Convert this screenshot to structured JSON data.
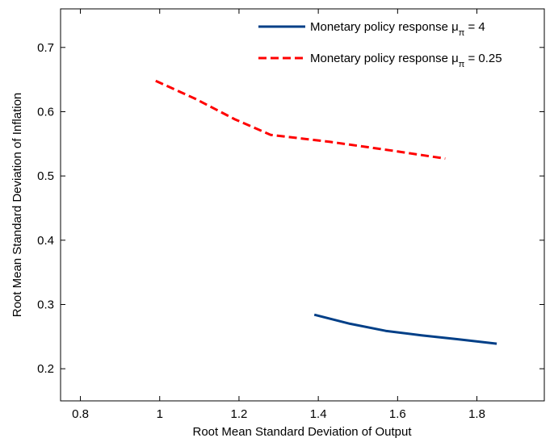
{
  "chart_data": {
    "type": "line",
    "xlabel": "Root Mean Standard Deviation of Output",
    "ylabel": "Root Mean Standard Deviation of Inflation",
    "xlim": [
      0.75,
      1.97
    ],
    "ylim": [
      0.15,
      0.76
    ],
    "xticks": [
      "0.8",
      "1",
      "1.2",
      "1.4",
      "1.6",
      "1.8"
    ],
    "yticks": [
      "0.2",
      "0.3",
      "0.4",
      "0.5",
      "0.6",
      "0.7"
    ],
    "grid": false,
    "legend_position": "top-right",
    "series": [
      {
        "name": "Monetary policy response μπ = 4",
        "legend": {
          "prefix": "Monetary policy response μ",
          "sub": "π",
          "suffix": " = 4"
        },
        "color": "#003F87",
        "style": "solid",
        "x": [
          1.39,
          1.48,
          1.57,
          1.66,
          1.75,
          1.85
        ],
        "y": [
          0.284,
          0.27,
          0.259,
          0.252,
          0.246,
          0.239
        ]
      },
      {
        "name": "Monetary policy response μπ = 0.25",
        "legend": {
          "prefix": "Monetary policy response μ",
          "sub": "π",
          "suffix": " = 0.25"
        },
        "color": "#FF0000",
        "style": "dashed",
        "x": [
          0.99,
          1.09,
          1.19,
          1.28,
          1.43,
          1.58,
          1.72
        ],
        "y": [
          0.648,
          0.62,
          0.588,
          0.564,
          0.553,
          0.54,
          0.527
        ]
      }
    ]
  }
}
